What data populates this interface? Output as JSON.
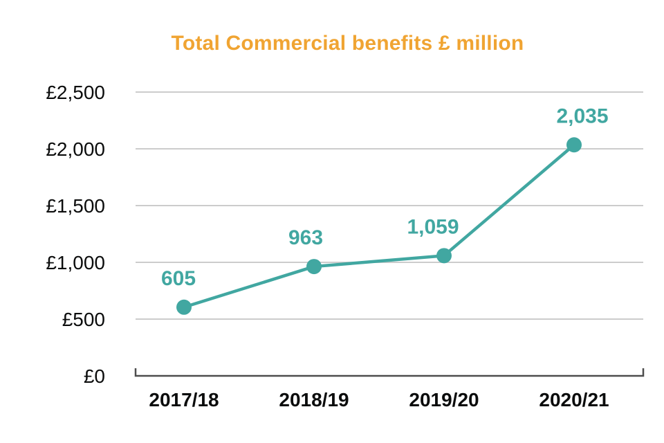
{
  "chart_data": {
    "type": "line",
    "title": "Total Commercial benefits £ million",
    "categories": [
      "2017/18",
      "2018/19",
      "2019/20",
      "2020/21"
    ],
    "values": [
      605,
      963,
      1059,
      2035
    ],
    "value_labels": [
      "605",
      "963",
      "1,059",
      "2,035"
    ],
    "y_ticks": [
      0,
      500,
      1000,
      1500,
      2000,
      2500
    ],
    "y_tick_labels": [
      "£0",
      "£500",
      "£1,000",
      "£1,500",
      "£2,000",
      "£2,500"
    ],
    "ylim": [
      0,
      2500
    ],
    "xlabel": "",
    "ylabel": "",
    "grid": true,
    "legend": "none",
    "colors": {
      "line": "#41A7A1",
      "marker": "#41A7A1",
      "value_label": "#41A7A1",
      "title": "#F0A432",
      "gridline": "#CCCCCC",
      "axis": "#4D4D4D",
      "tick_text": "#0B0C0C"
    }
  }
}
